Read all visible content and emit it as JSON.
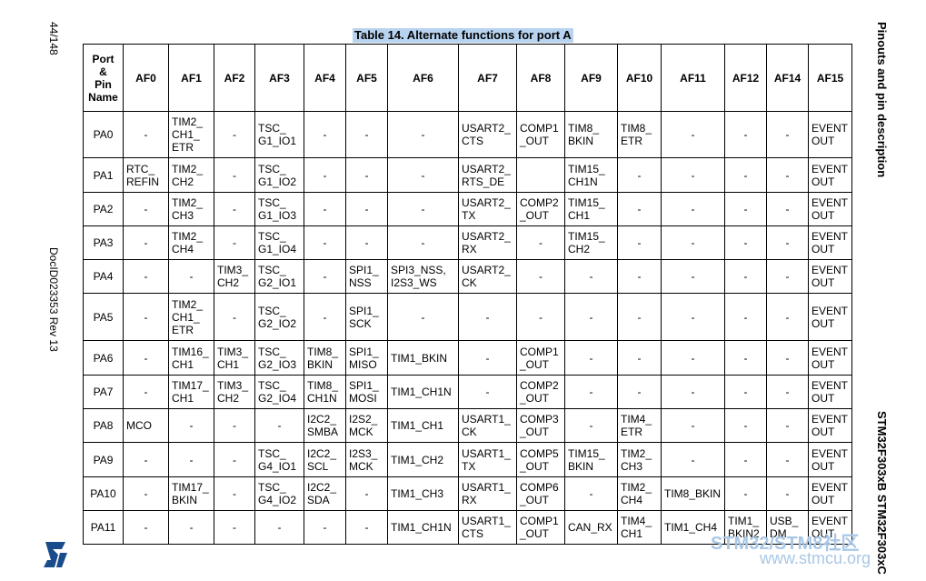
{
  "left_margin": {
    "page": "44/148",
    "doc_id": "DocID023353 Rev 13"
  },
  "right_margin": {
    "section": "Pinouts and pin description",
    "product": "STM32F303xB STM32F303xC"
  },
  "title": "Table 14. Alternate functions for port A",
  "table": {
    "header": [
      "Port\n&\nPin\nName",
      "AF0",
      "AF1",
      "AF2",
      "AF3",
      "AF4",
      "AF5",
      "AF6",
      "AF7",
      "AF8",
      "AF9",
      "AF10",
      "AF11",
      "AF12",
      "AF14",
      "AF15"
    ],
    "rows": [
      {
        "cells": [
          "PA0",
          "-",
          "TIM2_\nCH1_\nETR",
          "-",
          "TSC_\nG1_IO1",
          "-",
          "-",
          "-",
          "USART2_\nCTS",
          "COMP1\n_OUT",
          "TIM8_\nBKIN",
          "TIM8_\nETR",
          "-",
          "-",
          "-",
          "EVENT\nOUT"
        ]
      },
      {
        "cells": [
          "PA1",
          "RTC_\nREFIN",
          "TIM2_\nCH2",
          "-",
          "TSC_\nG1_IO2",
          "-",
          "-",
          "-",
          "USART2_\nRTS_DE",
          null,
          "TIM15_\nCH1N",
          "-",
          "-",
          "-",
          "-",
          "EVENT\nOUT"
        ]
      },
      {
        "cells": [
          "PA2",
          "-",
          "TIM2_\nCH3",
          "-",
          "TSC_\nG1_IO3",
          "-",
          "-",
          "-",
          "USART2_\nTX",
          "COMP2\n_OUT",
          "TIM15_\nCH1",
          "-",
          "-",
          "-",
          "-",
          "EVENT\nOUT"
        ]
      },
      {
        "cells": [
          "PA3",
          "-",
          "TIM2_\nCH4",
          "-",
          "TSC_\nG1_IO4",
          "-",
          "-",
          "-",
          "USART2_\nRX",
          "-",
          "TIM15_\nCH2",
          "-",
          "-",
          "-",
          "-",
          "EVENT\nOUT"
        ]
      },
      {
        "cells": [
          "PA4",
          "-",
          "-",
          "TIM3_\nCH2",
          "TSC_\nG2_IO1",
          "-",
          "SPI1_\nNSS",
          "SPI3_NSS,\nI2S3_WS",
          "USART2_\nCK",
          "-",
          "-",
          "-",
          "-",
          "-",
          "-",
          "EVENT\nOUT"
        ]
      },
      {
        "cells": [
          "PA5",
          "-",
          "TIM2_\nCH1_\nETR",
          "-",
          "TSC_\nG2_IO2",
          "-",
          "SPI1_\nSCK",
          "-",
          "-",
          "-",
          "-",
          "-",
          "-",
          "-",
          "-",
          "EVENT\nOUT"
        ]
      },
      {
        "cells": [
          "PA6",
          "-",
          "TIM16_\nCH1",
          "TIM3_\nCH1",
          "TSC_\nG2_IO3",
          "TIM8_\nBKIN",
          "SPI1_\nMISO",
          "TIM1_BKIN",
          "-",
          "COMP1\n_OUT",
          "-",
          "-",
          "-",
          "-",
          "-",
          "EVENT\nOUT"
        ]
      },
      {
        "cells": [
          "PA7",
          "-",
          "TIM17_\nCH1",
          "TIM3_\nCH2",
          "TSC_\nG2_IO4",
          "TIM8_\nCH1N",
          "SPI1_\nMOSI",
          "TIM1_CH1N",
          "-",
          "COMP2\n_OUT",
          "-",
          "-",
          "-",
          "-",
          "-",
          "EVENT\nOUT"
        ]
      },
      {
        "cells": [
          "PA8",
          "MCO",
          "-",
          "-",
          "-",
          "I2C2_\nSMBA",
          "I2S2_\nMCK",
          "TIM1_CH1",
          "USART1_\nCK",
          "COMP3\n_OUT",
          "-",
          "TIM4_\nETR",
          "-",
          "-",
          "-",
          "EVENT\nOUT"
        ]
      },
      {
        "cells": [
          "PA9",
          "-",
          "-",
          "-",
          "TSC_\nG4_IO1",
          "I2C2_\nSCL",
          "I2S3_\nMCK",
          "TIM1_CH2",
          "USART1_\nTX",
          "COMP5\n_OUT",
          "TIM15_\nBKIN",
          "TIM2_\nCH3",
          "-",
          "-",
          "-",
          "EVENT\nOUT"
        ]
      },
      {
        "cells": [
          "PA10",
          "-",
          "TIM17_\nBKIN",
          "-",
          "TSC_\nG4_IO2",
          "I2C2_\nSDA",
          "-",
          "TIM1_CH3",
          "USART1_\nRX",
          "COMP6\n_OUT",
          "-",
          "TIM2_\nCH4",
          "TIM8_BKIN",
          "-",
          "-",
          "EVENT\nOUT"
        ]
      },
      {
        "cells": [
          "PA11",
          "-",
          "-",
          "-",
          "-",
          "-",
          "-",
          "TIM1_CH1N",
          "USART1_\nCTS",
          "COMP1\n_OUT",
          "CAN_RX",
          "TIM4_\nCH1",
          "TIM1_CH4",
          "TIM1_\nBKIN2",
          "USB_\nDM",
          "EVENT\nOUT"
        ]
      }
    ]
  },
  "watermark": {
    "brand": "STM32/STM8社区",
    "url": "www.stmcu.org"
  }
}
